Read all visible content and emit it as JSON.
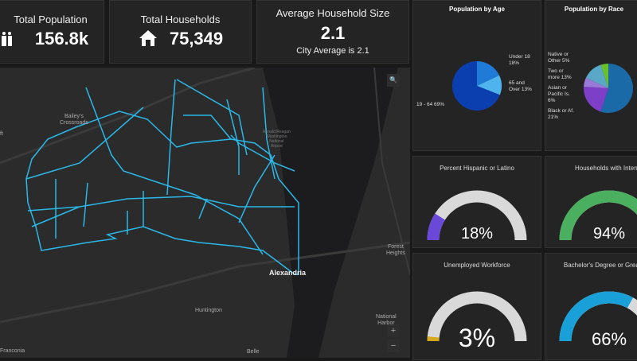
{
  "kpis": {
    "population": {
      "title": "Total Population",
      "value": "156.8k",
      "icon": "people-icon"
    },
    "households": {
      "title": "Total Households",
      "value": "75,349",
      "icon": "house-icon"
    },
    "household_size": {
      "title": "Average Household Size",
      "value": "2.1",
      "subtitle": "City Average is 2.1"
    }
  },
  "map": {
    "labels": {
      "bailey": "Bailey's\nCrossroads",
      "airport": "Ronald Reagan\nWashington\nNational\nAirport",
      "alexandria": "Alexandria",
      "huntington": "Huntington",
      "forest": "Forest\nHeights",
      "national": "National\nHarbor",
      "franconia": "Franconia",
      "belle": "Belle",
      "ft": "ft"
    },
    "controls": {
      "search": "🔍",
      "zoom_in": "+",
      "zoom_out": "−"
    },
    "boundary_color": "#2ab8e8"
  },
  "chart_data": [
    {
      "type": "pie",
      "title": "Population by Age",
      "slices": [
        {
          "label": "Under 18",
          "value": 18,
          "text": "Under 18\n18%",
          "color": "#1f7ad8"
        },
        {
          "label": "65 and Over",
          "value": 13,
          "text": "65 and\nOver 13%",
          "color": "#4fb3ee"
        },
        {
          "label": "19 - 64",
          "value": 69,
          "text": "19 - 64 69%",
          "color": "#0b3fb0"
        }
      ]
    },
    {
      "type": "pie",
      "title": "Population by Race",
      "slices": [
        {
          "label": "",
          "value": 55,
          "text": "",
          "color": "#1a6aa8"
        },
        {
          "label": "Black or Af.",
          "value": 21,
          "text": "Black or Af.\n21%",
          "color": "#7d3fc8"
        },
        {
          "label": "Asian or Pacific Is.",
          "value": 6,
          "text": "Asian or\nPacific Is.\n6%",
          "color": "#9a7ad8"
        },
        {
          "label": "Two or more",
          "value": 13,
          "text": "Two or\nmore 13%",
          "color": "#5aa8c8"
        },
        {
          "label": "Native or Other",
          "value": 5,
          "text": "Native or\nOther 5%",
          "color": "#6ac02a"
        }
      ]
    }
  ],
  "gauges": [
    {
      "title": "Percent Hispanic or Latino",
      "value": 18,
      "text": "18%",
      "color": "#6a48d8"
    },
    {
      "title": "Households with Internet",
      "value": 94,
      "text": "94%",
      "color": "#4ab060"
    },
    {
      "title": "Unemployed Workforce",
      "value": 3,
      "text": "3%",
      "color": "#d8a820"
    },
    {
      "title": "Bachelor's Degree or Greater",
      "value": 66,
      "text": "66%",
      "color": "#1aa0d8"
    }
  ]
}
